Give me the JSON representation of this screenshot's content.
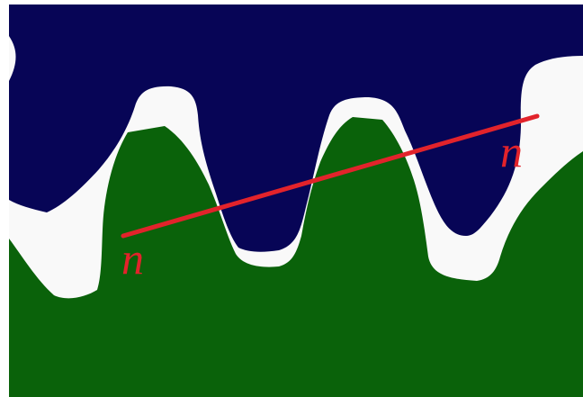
{
  "labels": {
    "lower": "n",
    "upper": "n"
  }
}
